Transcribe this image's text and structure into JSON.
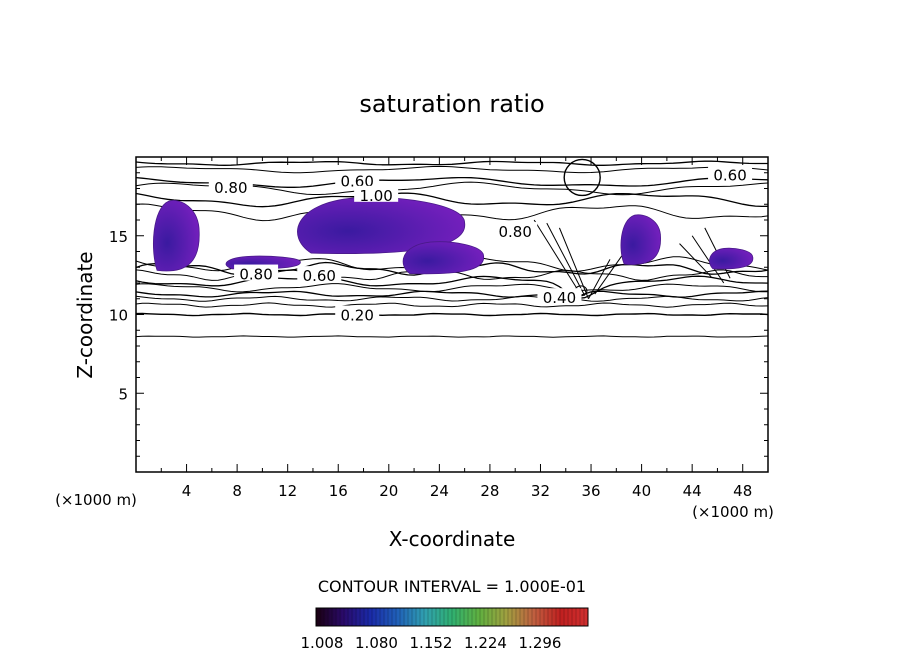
{
  "chart_data": {
    "type": "contour",
    "title": "saturation ratio",
    "xlabel": "X-coordinate",
    "ylabel": "Z-coordinate",
    "x_unit_label": "(×1000 m)",
    "y_unit_label": "(×1000 m)",
    "xlim": [
      0,
      50
    ],
    "ylim": [
      0,
      20
    ],
    "x_ticks": [
      4,
      8,
      12,
      16,
      20,
      24,
      28,
      32,
      36,
      40,
      44,
      48
    ],
    "y_ticks": [
      5,
      10,
      15
    ],
    "contour_interval_text": "CONTOUR INTERVAL = 1.000E-01",
    "contour_labels": [
      {
        "text": "0.20",
        "x": 17.5,
        "z": 10.0
      },
      {
        "text": "0.40",
        "x": 33.5,
        "z": 11.1
      },
      {
        "text": "0.60",
        "x": 14.5,
        "z": 12.5
      },
      {
        "text": "0.80",
        "x": 9.5,
        "z": 12.6
      },
      {
        "text": "0.80",
        "x": 7.5,
        "z": 18.1
      },
      {
        "text": "0.60",
        "x": 17.5,
        "z": 18.5
      },
      {
        "text": "1.00",
        "x": 19.0,
        "z": 17.6
      },
      {
        "text": "0.80",
        "x": 30.0,
        "z": 15.3
      },
      {
        "text": "0.60",
        "x": 47.0,
        "z": 18.9
      }
    ],
    "shaded_regions_above_1": [
      {
        "x": [
          1.3,
          5.0
        ],
        "z": [
          12.8,
          17.2
        ]
      },
      {
        "x": [
          7.0,
          13.0
        ],
        "z": [
          12.9,
          13.7
        ]
      },
      {
        "x": [
          12.5,
          26.0
        ],
        "z": [
          13.9,
          17.4
        ]
      },
      {
        "x": [
          21.0,
          27.5
        ],
        "z": [
          12.6,
          14.6
        ]
      },
      {
        "x": [
          38.3,
          41.5
        ],
        "z": [
          13.2,
          16.3
        ]
      },
      {
        "x": [
          45.3,
          48.8
        ],
        "z": [
          12.9,
          14.2
        ]
      }
    ],
    "colorbar": {
      "ticks": [
        "1.008",
        "1.080",
        "1.152",
        "1.224",
        "1.296"
      ],
      "colors": [
        "#1a0010",
        "#2a0a6a",
        "#1a2aa8",
        "#2060b8",
        "#30a0b0",
        "#30b070",
        "#60b040",
        "#a0a040",
        "#c06040",
        "#c02020",
        "#d03030"
      ]
    }
  }
}
